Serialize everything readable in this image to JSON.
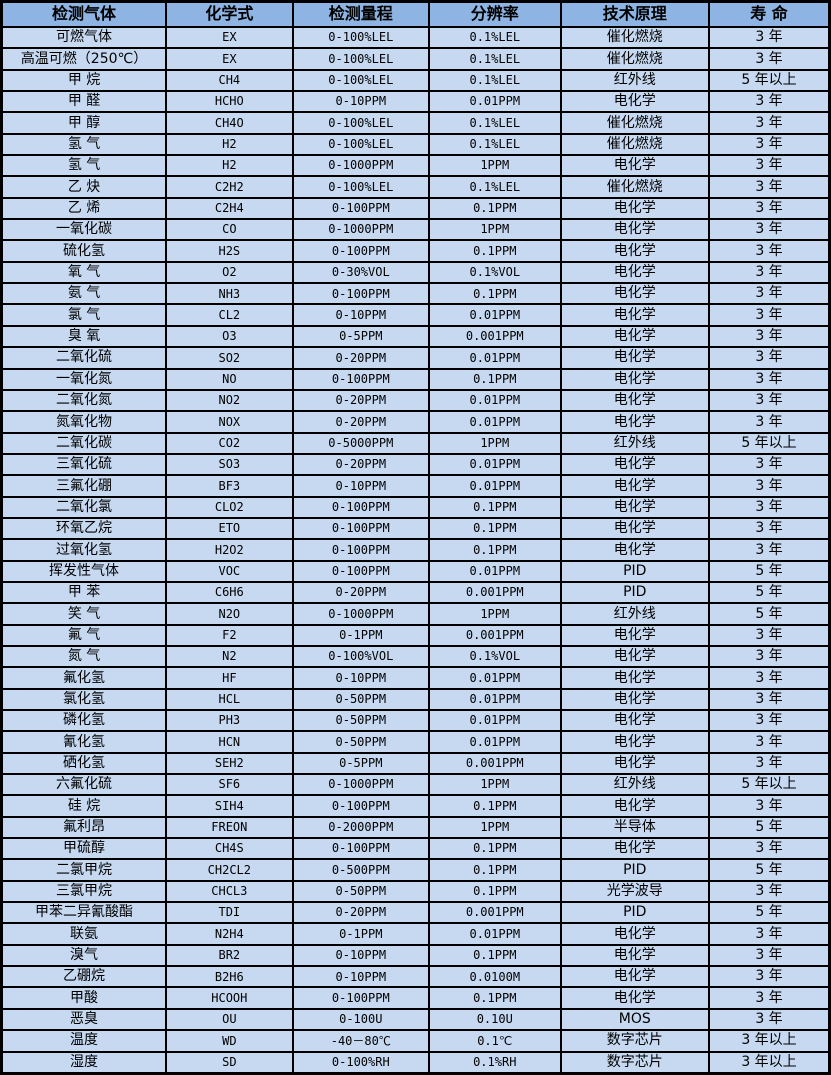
{
  "colors": {
    "header_bg": "#8DB4E2",
    "row_bg": "#C6D9F1",
    "border": "#000000",
    "text": "#000000"
  },
  "table": {
    "columns": [
      "检测气体",
      "化学式",
      "检测量程",
      "分辨率",
      "技术原理",
      "寿 命"
    ],
    "rows": [
      [
        "可燃气体",
        "EX",
        "0-100%LEL",
        "0.1%LEL",
        "催化燃烧",
        "3 年"
      ],
      [
        "高温可燃（250℃）",
        "EX",
        "0-100%LEL",
        "0.1%LEL",
        "催化燃烧",
        "3 年"
      ],
      [
        "甲 烷",
        "CH4",
        "0-100%LEL",
        "0.1%LEL",
        "红外线",
        "5 年以上"
      ],
      [
        "甲 醛",
        "HCHO",
        "0-10PPM",
        "0.01PPM",
        "电化学",
        "3 年"
      ],
      [
        "甲 醇",
        "CH4O",
        "0-100%LEL",
        "0.1%LEL",
        "催化燃烧",
        "3 年"
      ],
      [
        "氢 气",
        "H2",
        "0-100%LEL",
        "0.1%LEL",
        "催化燃烧",
        "3 年"
      ],
      [
        "氢 气",
        "H2",
        "0-1000PPM",
        "1PPM",
        "电化学",
        "3 年"
      ],
      [
        "乙 炔",
        "C2H2",
        "0-100%LEL",
        "0.1%LEL",
        "催化燃烧",
        "3 年"
      ],
      [
        "乙 烯",
        "C2H4",
        "0-100PPM",
        "0.1PPM",
        "电化学",
        "3 年"
      ],
      [
        "一氧化碳",
        "CO",
        "0-1000PPM",
        "1PPM",
        "电化学",
        "3 年"
      ],
      [
        "硫化氢",
        "H2S",
        "0-100PPM",
        "0.1PPM",
        "电化学",
        "3 年"
      ],
      [
        "氧 气",
        "O2",
        "0-30%VOL",
        "0.1%VOL",
        "电化学",
        "3 年"
      ],
      [
        "氨 气",
        "NH3",
        "0-100PPM",
        "0.1PPM",
        "电化学",
        "3 年"
      ],
      [
        "氯 气",
        "CL2",
        "0-10PPM",
        "0.01PPM",
        "电化学",
        "3 年"
      ],
      [
        "臭 氧",
        "O3",
        "0-5PPM",
        "0.001PPM",
        "电化学",
        "3 年"
      ],
      [
        "二氧化硫",
        "SO2",
        "0-20PPM",
        "0.01PPM",
        "电化学",
        "3 年"
      ],
      [
        "一氧化氮",
        "NO",
        "0-100PPM",
        "0.1PPM",
        "电化学",
        "3 年"
      ],
      [
        "二氧化氮",
        "NO2",
        "0-20PPM",
        "0.01PPM",
        "电化学",
        "3 年"
      ],
      [
        "氮氧化物",
        "NOX",
        "0-20PPM",
        "0.01PPM",
        "电化学",
        "3 年"
      ],
      [
        "二氧化碳",
        "CO2",
        "0-5000PPM",
        "1PPM",
        "红外线",
        "5 年以上"
      ],
      [
        "三氧化硫",
        "SO3",
        "0-20PPM",
        "0.01PPM",
        "电化学",
        "3 年"
      ],
      [
        "三氟化硼",
        "BF3",
        "0-10PPM",
        "0.01PPM",
        "电化学",
        "3 年"
      ],
      [
        "二氧化氯",
        "CLO2",
        "0-100PPM",
        "0.1PPM",
        "电化学",
        "3 年"
      ],
      [
        "环氧乙烷",
        "ETO",
        "0-100PPM",
        "0.1PPM",
        "电化学",
        "3 年"
      ],
      [
        "过氧化氢",
        "H2O2",
        "0-100PPM",
        "0.1PPM",
        "电化学",
        "3 年"
      ],
      [
        "挥发性气体",
        "VOC",
        "0-100PPM",
        "0.01PPM",
        "PID",
        "5 年"
      ],
      [
        "甲 苯",
        "C6H6",
        "0-20PPM",
        "0.001PPM",
        "PID",
        "5 年"
      ],
      [
        "笑 气",
        "N2O",
        "0-1000PPM",
        "1PPM",
        "红外线",
        "5 年"
      ],
      [
        "氟 气",
        "F2",
        "0-1PPM",
        "0.001PPM",
        "电化学",
        "3 年"
      ],
      [
        "氮 气",
        "N2",
        "0-100%VOL",
        "0.1%VOL",
        "电化学",
        "3 年"
      ],
      [
        "氟化氢",
        "HF",
        "0-10PPM",
        "0.01PPM",
        "电化学",
        "3 年"
      ],
      [
        "氯化氢",
        "HCL",
        "0-50PPM",
        "0.01PPM",
        "电化学",
        "3 年"
      ],
      [
        "磷化氢",
        "PH3",
        "0-50PPM",
        "0.01PPM",
        "电化学",
        "3 年"
      ],
      [
        "氰化氢",
        "HCN",
        "0-50PPM",
        "0.01PPM",
        "电化学",
        "3 年"
      ],
      [
        "硒化氢",
        "SEH2",
        "0-5PPM",
        "0.001PPM",
        "电化学",
        "3 年"
      ],
      [
        "六氟化硫",
        "SF6",
        "0-1000PPM",
        "1PPM",
        "红外线",
        "5 年以上"
      ],
      [
        "硅 烷",
        "SIH4",
        "0-100PPM",
        "0.1PPM",
        "电化学",
        "3 年"
      ],
      [
        "氟利昂",
        "FREON",
        "0-2000PPM",
        "1PPM",
        "半导体",
        "5 年"
      ],
      [
        "甲硫醇",
        "CH4S",
        "0-100PPM",
        "0.1PPM",
        "电化学",
        "3 年"
      ],
      [
        "二氯甲烷",
        "CH2CL2",
        "0-500PPM",
        "0.1PPM",
        "PID",
        "5 年"
      ],
      [
        "三氯甲烷",
        "CHCL3",
        "0-50PPM",
        "0.1PPM",
        "光学波导",
        "3 年"
      ],
      [
        "甲苯二异氰酸酯",
        "TDI",
        "0-20PPM",
        "0.001PPM",
        "PID",
        "5 年"
      ],
      [
        "联氨",
        "N2H4",
        "0-1PPM",
        "0.01PPM",
        "电化学",
        "3 年"
      ],
      [
        "溴气",
        "BR2",
        "0-10PPM",
        "0.1PPM",
        "电化学",
        "3 年"
      ],
      [
        "乙硼烷",
        "B2H6",
        "0-10PPM",
        "0.0100M",
        "电化学",
        "3 年"
      ],
      [
        "甲酸",
        "HCOOH",
        "0-100PPM",
        "0.1PPM",
        "电化学",
        "3 年"
      ],
      [
        "恶臭",
        "OU",
        "0-100U",
        "0.10U",
        "MOS",
        "3 年"
      ],
      [
        "温度",
        "WD",
        "-40－80℃",
        "0.1℃",
        "数字芯片",
        "3 年以上"
      ],
      [
        "湿度",
        "SD",
        "0-100%RH",
        "0.1%RH",
        "数字芯片",
        "3 年以上"
      ]
    ]
  }
}
